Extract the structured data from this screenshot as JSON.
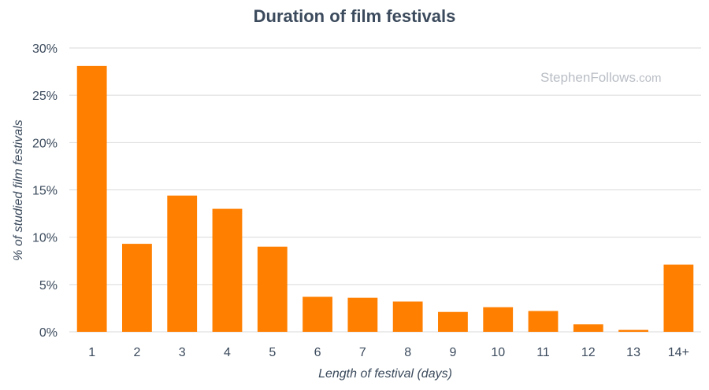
{
  "watermark": {
    "main": "StephenFollows",
    "tld": ".com"
  },
  "colors": {
    "bar": "#ff7f00",
    "grid": "#d9d9d9",
    "text": "#3b4a5c"
  },
  "chart_data": {
    "type": "bar",
    "title": "Duration of film festivals",
    "xlabel": "Length of festival (days)",
    "ylabel": "% of studied film festivals",
    "categories": [
      "1",
      "2",
      "3",
      "4",
      "5",
      "6",
      "7",
      "8",
      "9",
      "10",
      "11",
      "12",
      "13",
      "14+"
    ],
    "values": [
      28.1,
      9.3,
      14.4,
      13.0,
      9.0,
      3.7,
      3.6,
      3.2,
      2.1,
      2.6,
      2.2,
      0.8,
      0.2,
      7.1
    ],
    "ylim": [
      0,
      30
    ],
    "yticks": [
      "0%",
      "5%",
      "10%",
      "15%",
      "20%",
      "25%",
      "30%"
    ],
    "ytick_values": [
      0,
      5,
      10,
      15,
      20,
      25,
      30
    ],
    "grid": true,
    "legend": "none"
  }
}
